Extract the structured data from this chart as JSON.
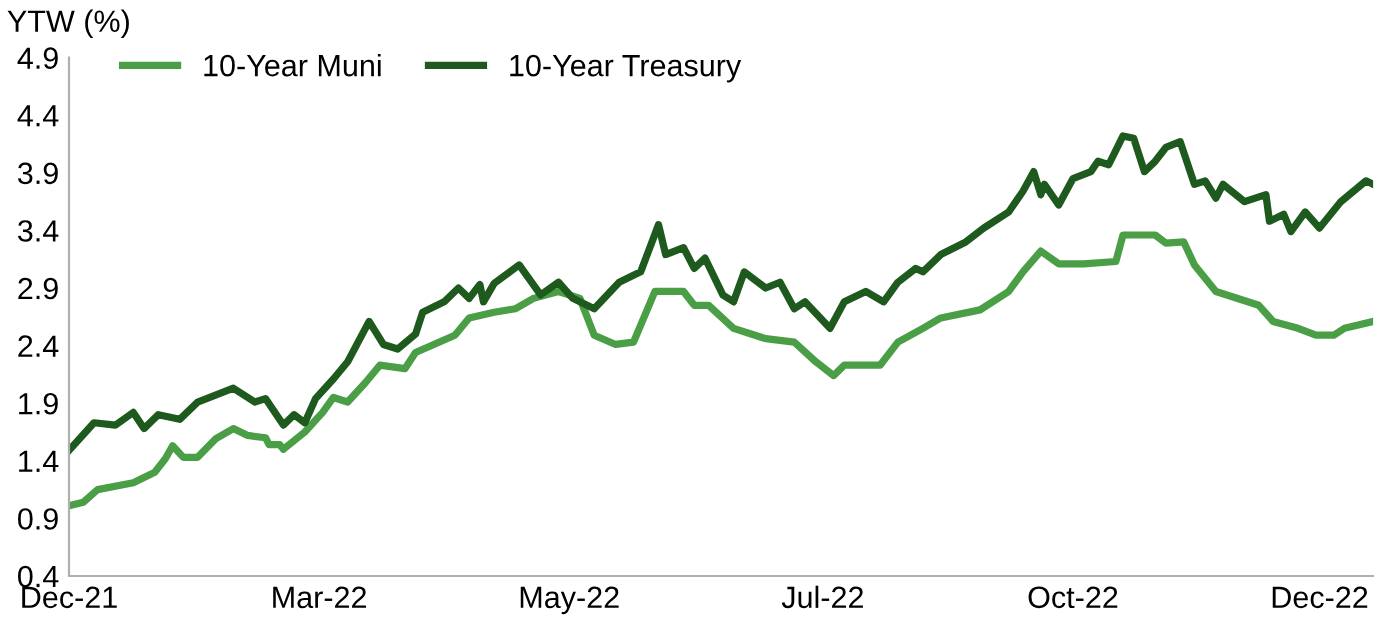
{
  "chart_data": {
    "type": "line",
    "ylabel": "YTW (%)",
    "legend": "top left",
    "grid": false,
    "marker": "none",
    "line_style": "solid",
    "xlim": [
      "2021-12-30",
      "2022-12-30"
    ],
    "xticks": [
      {
        "value": "2021-12-30",
        "label": "Dec-21"
      },
      {
        "value": "2022-03-10",
        "label": "Mar-22"
      },
      {
        "value": "2022-05-19",
        "label": "May-22"
      },
      {
        "value": "2022-07-29",
        "label": "Jul-22"
      },
      {
        "value": "2022-10-07",
        "label": "Oct-22"
      },
      {
        "value": "2022-12-15",
        "label": "Dec-22"
      }
    ],
    "ylim": [
      0.4,
      4.9
    ],
    "yticks": [
      0.4,
      0.9,
      1.4,
      1.9,
      2.4,
      2.9,
      3.4,
      3.9,
      4.4,
      4.9
    ],
    "series": [
      {
        "name": "10-Year Muni",
        "color": "#4a9e45",
        "x": [
          "2021-12-30",
          "2022-01-03",
          "2022-01-07",
          "2022-01-17",
          "2022-01-23",
          "2022-01-26",
          "2022-01-28",
          "2022-01-31",
          "2022-02-04",
          "2022-02-09",
          "2022-02-14",
          "2022-02-18",
          "2022-02-23",
          "2022-02-24",
          "2022-02-27",
          "2022-02-28",
          "2022-03-06",
          "2022-03-11",
          "2022-03-14",
          "2022-03-18",
          "2022-03-23",
          "2022-03-27",
          "2022-04-03",
          "2022-04-06",
          "2022-04-17",
          "2022-04-21",
          "2022-04-28",
          "2022-05-04",
          "2022-05-09",
          "2022-05-16",
          "2022-05-22",
          "2022-05-26",
          "2022-06-01",
          "2022-06-06",
          "2022-06-12",
          "2022-06-20",
          "2022-06-23",
          "2022-06-27",
          "2022-07-04",
          "2022-07-13",
          "2022-07-21",
          "2022-07-27",
          "2022-08-01",
          "2022-08-04",
          "2022-08-14",
          "2022-08-19",
          "2022-08-26",
          "2022-08-31",
          "2022-09-11",
          "2022-09-19",
          "2022-09-23",
          "2022-09-28",
          "2022-10-03",
          "2022-10-10",
          "2022-10-19",
          "2022-10-21",
          "2022-10-30",
          "2022-11-02",
          "2022-11-07",
          "2022-11-10",
          "2022-11-16",
          "2022-11-28",
          "2022-12-02",
          "2022-12-09",
          "2022-12-14",
          "2022-12-19",
          "2022-12-22",
          "2022-12-30"
        ],
        "values": [
          1.01,
          1.04,
          1.15,
          1.21,
          1.3,
          1.42,
          1.53,
          1.43,
          1.43,
          1.59,
          1.68,
          1.62,
          1.6,
          1.54,
          1.54,
          1.5,
          1.65,
          1.82,
          1.95,
          1.91,
          2.08,
          2.23,
          2.2,
          2.34,
          2.49,
          2.64,
          2.69,
          2.72,
          2.81,
          2.87,
          2.81,
          2.49,
          2.41,
          2.43,
          2.87,
          2.87,
          2.75,
          2.75,
          2.55,
          2.46,
          2.43,
          2.26,
          2.14,
          2.23,
          2.23,
          2.43,
          2.55,
          2.64,
          2.71,
          2.87,
          3.04,
          3.22,
          3.11,
          3.11,
          3.13,
          3.36,
          3.36,
          3.29,
          3.3,
          3.1,
          2.87,
          2.75,
          2.61,
          2.55,
          2.49,
          2.49,
          2.55,
          2.61
        ]
      },
      {
        "name": "10-Year Treasury",
        "color": "#1e5a1e",
        "x": [
          "2021-12-30",
          "2022-01-06",
          "2022-01-12",
          "2022-01-17",
          "2022-01-20",
          "2022-01-24",
          "2022-01-30",
          "2022-02-04",
          "2022-02-09",
          "2022-02-14",
          "2022-02-20",
          "2022-02-23",
          "2022-02-28",
          "2022-03-03",
          "2022-03-06",
          "2022-03-09",
          "2022-03-14",
          "2022-03-18",
          "2022-03-24",
          "2022-03-28",
          "2022-04-01",
          "2022-04-06",
          "2022-04-08",
          "2022-04-14",
          "2022-04-18",
          "2022-04-21",
          "2022-04-24",
          "2022-04-25",
          "2022-04-28",
          "2022-05-05",
          "2022-05-11",
          "2022-05-16",
          "2022-05-20",
          "2022-05-26",
          "2022-06-02",
          "2022-06-08",
          "2022-06-13",
          "2022-06-15",
          "2022-06-20",
          "2022-06-23",
          "2022-06-26",
          "2022-07-01",
          "2022-07-04",
          "2022-07-07",
          "2022-07-13",
          "2022-07-17",
          "2022-07-21",
          "2022-07-24",
          "2022-07-31",
          "2022-08-04",
          "2022-08-10",
          "2022-08-15",
          "2022-08-19",
          "2022-08-24",
          "2022-08-26",
          "2022-08-31",
          "2022-09-07",
          "2022-09-12",
          "2022-09-19",
          "2022-09-23",
          "2022-09-26",
          "2022-09-28",
          "2022-09-29",
          "2022-10-03",
          "2022-10-07",
          "2022-10-12",
          "2022-10-14",
          "2022-10-17",
          "2022-10-21",
          "2022-10-24",
          "2022-10-27",
          "2022-10-30",
          "2022-11-02",
          "2022-11-06",
          "2022-11-10",
          "2022-11-13",
          "2022-11-16",
          "2022-11-18",
          "2022-11-24",
          "2022-11-30",
          "2022-12-01",
          "2022-12-05",
          "2022-12-07",
          "2022-12-11",
          "2022-12-15",
          "2022-12-21",
          "2022-12-28",
          "2022-12-30"
        ],
        "values": [
          1.49,
          1.73,
          1.71,
          1.82,
          1.68,
          1.8,
          1.76,
          1.91,
          1.97,
          2.03,
          1.91,
          1.94,
          1.71,
          1.8,
          1.73,
          1.94,
          2.11,
          2.26,
          2.61,
          2.41,
          2.37,
          2.5,
          2.69,
          2.78,
          2.9,
          2.81,
          2.93,
          2.78,
          2.94,
          3.1,
          2.84,
          2.95,
          2.81,
          2.72,
          2.95,
          3.04,
          3.45,
          3.19,
          3.25,
          3.07,
          3.16,
          2.84,
          2.78,
          3.04,
          2.9,
          2.95,
          2.72,
          2.78,
          2.55,
          2.78,
          2.87,
          2.78,
          2.95,
          3.07,
          3.04,
          3.19,
          3.3,
          3.42,
          3.56,
          3.74,
          3.91,
          3.71,
          3.8,
          3.62,
          3.85,
          3.91,
          4.0,
          3.97,
          4.22,
          4.2,
          3.91,
          4.0,
          4.12,
          4.17,
          3.8,
          3.83,
          3.68,
          3.8,
          3.65,
          3.71,
          3.48,
          3.54,
          3.39,
          3.56,
          3.42,
          3.65,
          3.83,
          3.8
        ]
      }
    ]
  }
}
